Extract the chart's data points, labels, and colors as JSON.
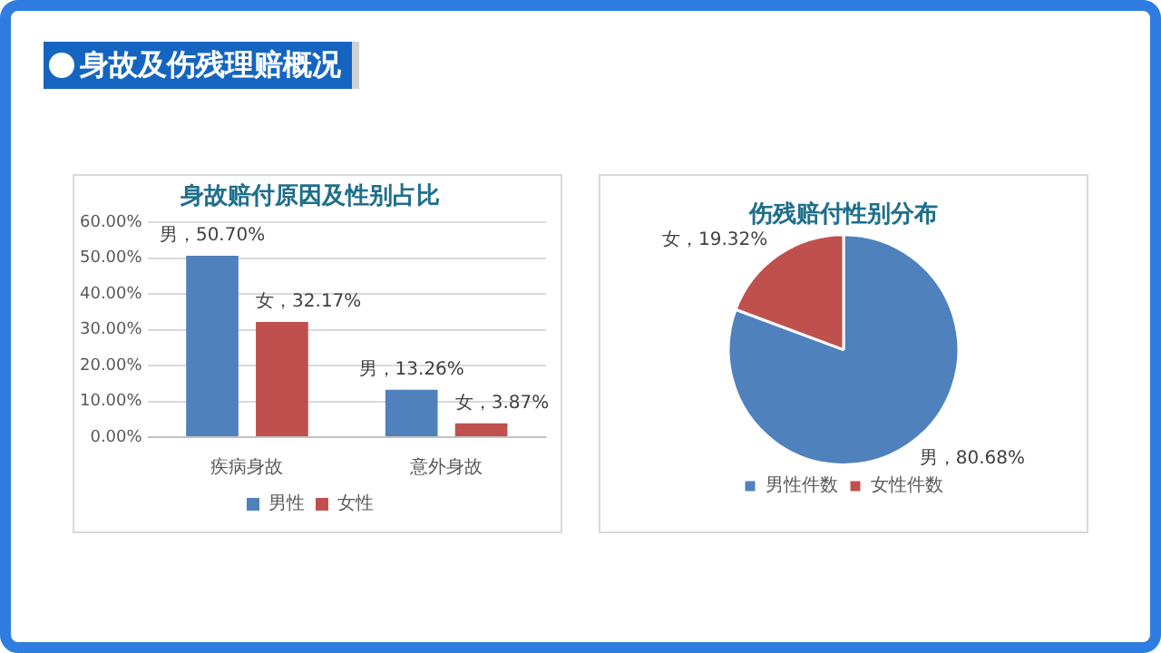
{
  "chart_data": [
    {
      "type": "other",
      "title": "身故及伤残理赔概况"
    },
    {
      "type": "bar",
      "title": "身故赔付原因及性别占比",
      "categories": [
        "疾病身故",
        "意外身故"
      ],
      "series": [
        {
          "name": "男性",
          "color": "#4f81bd",
          "values": [
            50.7,
            13.26
          ],
          "value_labels": [
            "男，50.70%",
            "男，13.26%"
          ]
        },
        {
          "name": "女性",
          "color": "#c0504d",
          "values": [
            32.17,
            3.87
          ],
          "value_labels": [
            "女，32.17%",
            "女，3.87%"
          ]
        }
      ],
      "ylim": [
        0,
        60
      ],
      "yticks": [
        {
          "value": 0,
          "label": "0.00%"
        },
        {
          "value": 10,
          "label": "10.00%"
        },
        {
          "value": 20,
          "label": "20.00%"
        },
        {
          "value": 30,
          "label": "30.00%"
        },
        {
          "value": 40,
          "label": "40.00%"
        },
        {
          "value": 50,
          "label": "50.00%"
        },
        {
          "value": 60,
          "label": "60.00%"
        }
      ],
      "grid": "y",
      "legend": "bottom"
    },
    {
      "type": "pie",
      "title": "伤残赔付性别分布",
      "categories": [
        "男性件数",
        "女性件数"
      ],
      "values": [
        80.68,
        19.32
      ],
      "colors": [
        "#4f81bd",
        "#c0504d"
      ],
      "value_labels": [
        "男，80.68%",
        "女，19.32%"
      ],
      "legend": "bottom"
    }
  ]
}
